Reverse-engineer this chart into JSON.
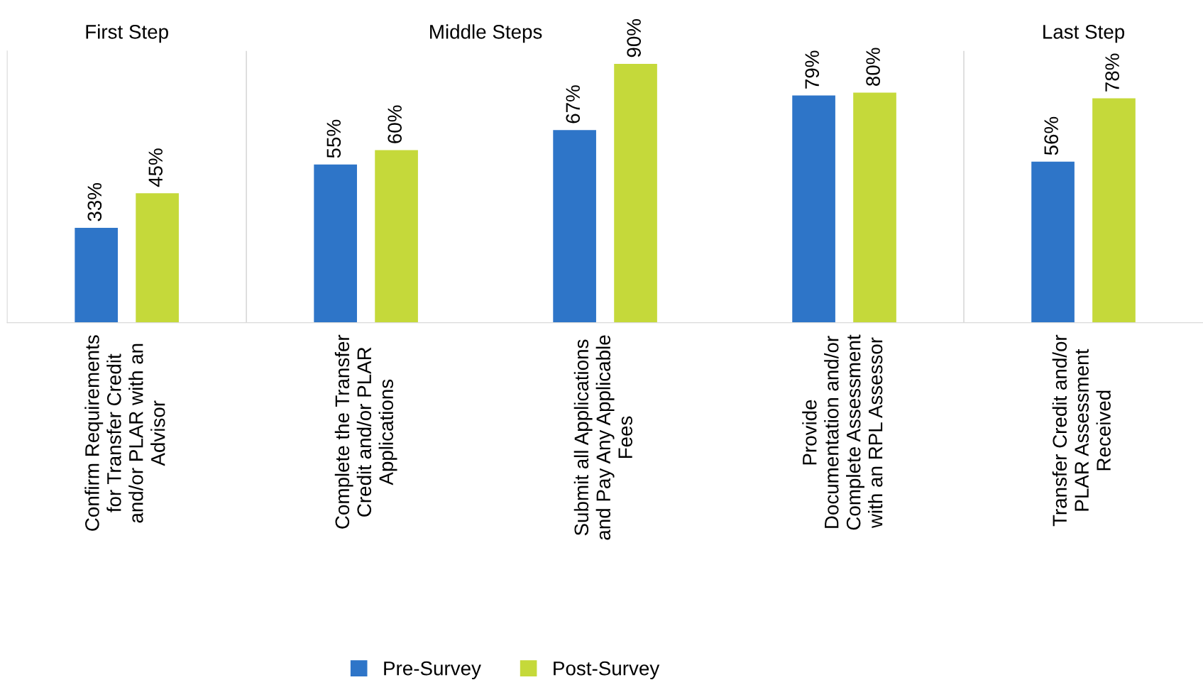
{
  "chart_data": {
    "type": "bar",
    "categories": [
      "Confirm Requirements\nfor Transfer Credit\nand/or PLAR with an\nAdvisor",
      "Complete the Transfer\nCredit and/or PLAR\nApplications",
      "Submit all Applications\nand Pay Any Applicable\nFees",
      "Provide\nDocumentation and/or\nComplete Assessment\nwith an RPL Assessor",
      "Transfer Credit and/or\nPLAR Assessment\nReceived"
    ],
    "series": [
      {
        "name": "Pre-Survey",
        "color": "#2e75c8",
        "values": [
          33,
          55,
          67,
          79,
          56
        ],
        "value_labels": [
          "33%",
          "55%",
          "67%",
          "79%",
          "56%"
        ]
      },
      {
        "name": "Post-Survey",
        "color": "#c5d93a",
        "values": [
          45,
          60,
          90,
          80,
          78
        ],
        "value_labels": [
          "45%",
          "60%",
          "90%",
          "80%",
          "78%"
        ]
      }
    ],
    "annotations": [
      "First Step",
      "Middle Steps",
      "Last Step"
    ],
    "grid": false,
    "legend": "bottom"
  }
}
